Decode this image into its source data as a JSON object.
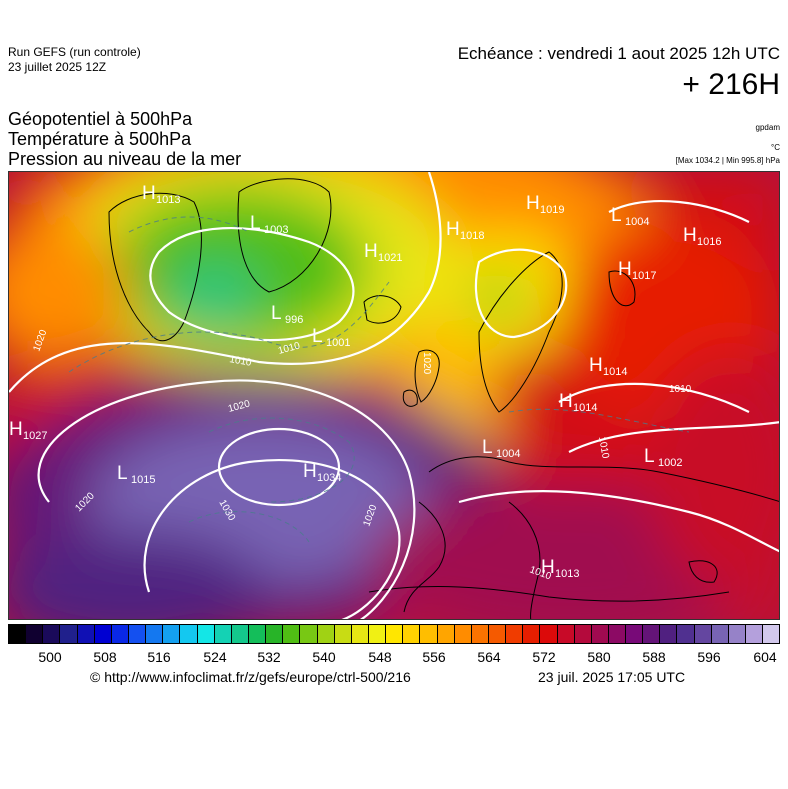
{
  "header": {
    "run_line1": "Run GEFS (run controle)",
    "run_line2": "23 juillet 2025 12Z",
    "forecast_time": "Echéance : vendredi 1 aout 2025 12h UTC",
    "forecast_lead": "+ 216H",
    "title_line1": "Géopotentiel à 500hPa",
    "title_line2": "Température à 500hPa",
    "title_line3": "Pression au niveau de la mer",
    "unit_geopotential": "gpdam",
    "unit_temperature": "°C",
    "minmax_label": "[Max 1034.2 | Min 995.8] hPa"
  },
  "pressure_centers": [
    {
      "type": "H",
      "value": "1013"
    },
    {
      "type": "L",
      "value": "1003"
    },
    {
      "type": "H",
      "value": "1021"
    },
    {
      "type": "L",
      "value": "996"
    },
    {
      "type": "L",
      "value": "1001"
    },
    {
      "type": "H",
      "value": "1018"
    },
    {
      "type": "H",
      "value": "1019"
    },
    {
      "type": "L",
      "value": "1004"
    },
    {
      "type": "H",
      "value": "1016"
    },
    {
      "type": "H",
      "value": "1017"
    },
    {
      "type": "H",
      "value": "1014"
    },
    {
      "type": "H",
      "value": "1014"
    },
    {
      "type": "L",
      "value": "1004"
    },
    {
      "type": "L",
      "value": "1002"
    },
    {
      "type": "H",
      "value": "1027"
    },
    {
      "type": "L",
      "value": "1015"
    },
    {
      "type": "H",
      "value": "1034"
    },
    {
      "type": "H",
      "value": "1013"
    }
  ],
  "isobar_labels": [
    "1020",
    "1010",
    "1010",
    "1020",
    "1020",
    "1030",
    "1020",
    "1020",
    "1010",
    "1010",
    "1010"
  ],
  "colorbar": {
    "colors": [
      "#000000",
      "#100030",
      "#1a0a5a",
      "#20208c",
      "#1010b4",
      "#0000d2",
      "#0a28e6",
      "#1450f0",
      "#1478f0",
      "#14a0f0",
      "#14c8f0",
      "#14e6e6",
      "#14d2b4",
      "#14c88c",
      "#14be5a",
      "#28b428",
      "#50be14",
      "#78c814",
      "#a0d214",
      "#c8dc14",
      "#e6e614",
      "#f0f014",
      "#ffe600",
      "#ffd200",
      "#ffbe00",
      "#ffa500",
      "#ff8c00",
      "#fa7300",
      "#f55a00",
      "#f03c00",
      "#e61e00",
      "#dc0a0a",
      "#c80a28",
      "#b40a3c",
      "#a00a50",
      "#8c0a64",
      "#780a78",
      "#641478",
      "#502080",
      "#503090",
      "#6446a0",
      "#7864b4",
      "#9682c8",
      "#b4a0dc",
      "#d2c8ec"
    ],
    "tick_labels": [
      "500",
      "508",
      "516",
      "524",
      "532",
      "540",
      "548",
      "556",
      "564",
      "572",
      "580",
      "588",
      "596",
      "604"
    ]
  },
  "footer": {
    "credit_url": "© http://www.infoclimat.fr/z/gefs/europe/ctrl-500/216",
    "credit_date": "23 juil. 2025 17:05 UTC"
  }
}
